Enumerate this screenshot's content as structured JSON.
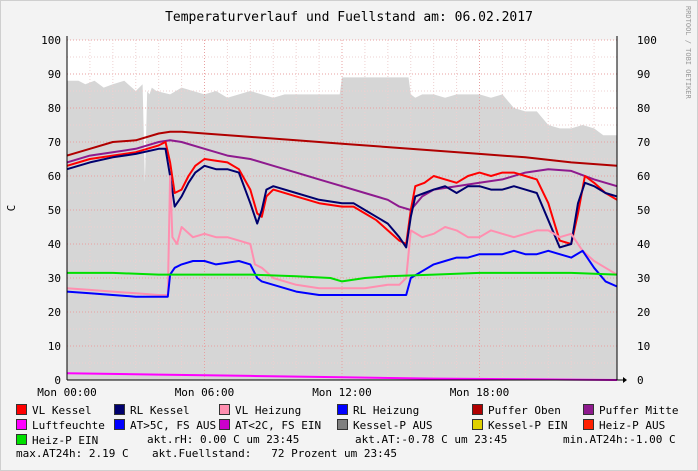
{
  "chart_data": {
    "type": "line",
    "title": "Temperaturverlauf und Fuellstand am: 06.02.2017",
    "ylabel": "C",
    "side_label": "RRDTOOL / TOBI OETIKER",
    "ylim": [
      0,
      100
    ],
    "xlim_hours": [
      0,
      24
    ],
    "y_ticks": [
      "0",
      "10",
      "20",
      "30",
      "40",
      "50",
      "60",
      "70",
      "80",
      "90",
      "100"
    ],
    "x_ticks": [
      {
        "h": 0,
        "label": "Mon 00:00"
      },
      {
        "h": 6,
        "label": "Mon 06:00"
      },
      {
        "h": 12,
        "label": "Mon 12:00"
      },
      {
        "h": 18,
        "label": "Mon 18:00"
      }
    ],
    "grid": true,
    "area": {
      "name": "Fuellstand",
      "color": "#d6d6d6",
      "x": [
        0,
        0.5,
        0.8,
        1.2,
        1.6,
        2.0,
        2.5,
        3.0,
        3.3,
        3.4,
        3.5,
        3.6,
        3.7,
        3.9,
        4.5,
        5.0,
        5.5,
        6.0,
        6.5,
        7.0,
        7.5,
        8.0,
        8.5,
        9.0,
        9.5,
        10.0,
        10.5,
        11.0,
        11.9,
        12.0,
        13.5,
        14.9,
        15.0,
        15.2,
        15.5,
        16.0,
        16.5,
        17.0,
        17.5,
        18.0,
        18.5,
        19.0,
        19.5,
        20.0,
        20.5,
        21.0,
        21.5,
        22.0,
        22.5,
        23.0,
        23.4,
        24.0
      ],
      "values": [
        88,
        88,
        87,
        88,
        86,
        87,
        88,
        85,
        87,
        58,
        85,
        84,
        86,
        85,
        84,
        86,
        85,
        84,
        85,
        83,
        84,
        85,
        84,
        83,
        84,
        84,
        84,
        84,
        84,
        89,
        89,
        89,
        84,
        83,
        84,
        84,
        83,
        84,
        84,
        84,
        83,
        84,
        80,
        79,
        79,
        75,
        74,
        74,
        75,
        74,
        72,
        72
      ]
    },
    "series": [
      {
        "name": "Puffer Oben",
        "color": "#b00000",
        "x": [
          0,
          1,
          2,
          3,
          4,
          4.5,
          5,
          6,
          8,
          10,
          12,
          14,
          16,
          18,
          20,
          22,
          24
        ],
        "values": [
          66,
          68,
          70,
          70.5,
          72.5,
          73,
          73,
          72.5,
          71.5,
          70.5,
          69.5,
          68.5,
          67.5,
          66.5,
          65.5,
          64,
          63
        ]
      },
      {
        "name": "Puffer Mitte",
        "color": "#8e1a8e",
        "x": [
          0,
          1,
          2,
          3,
          4,
          4.5,
          5,
          6,
          7,
          8,
          9,
          10,
          11,
          12,
          13,
          14,
          14.5,
          15,
          15.5,
          16,
          17,
          18,
          19,
          20,
          21,
          22,
          23,
          24
        ],
        "values": [
          64,
          66,
          67,
          68,
          70,
          70.5,
          70,
          68,
          66,
          65,
          63,
          61,
          59,
          57,
          55,
          53,
          51,
          50,
          54,
          56,
          57,
          58,
          59,
          61,
          62,
          61.5,
          59,
          57
        ]
      },
      {
        "name": "VL Kessel",
        "color": "#ff0000",
        "x": [
          0,
          1,
          2,
          3,
          4,
          4.3,
          4.5,
          4.7,
          5.0,
          5.3,
          5.6,
          6.0,
          6.5,
          7.0,
          7.5,
          8.0,
          8.3,
          8.5,
          8.7,
          9.0,
          10.0,
          11.0,
          12.0,
          12.5,
          13.0,
          13.5,
          14.0,
          14.5,
          14.8,
          15.0,
          15.2,
          15.6,
          16.0,
          16.5,
          17.0,
          17.5,
          18.0,
          18.5,
          19.0,
          19.5,
          20.0,
          20.5,
          21.0,
          21.5,
          22.0,
          22.3,
          22.6,
          23.0,
          23.5,
          24.0
        ],
        "values": [
          63,
          65,
          66,
          67,
          69,
          70,
          64,
          55,
          56,
          60,
          63,
          65,
          64.5,
          64,
          62,
          56,
          49,
          48,
          54,
          56,
          54,
          52,
          51,
          51,
          49,
          47,
          44,
          41,
          40,
          50,
          57,
          58,
          60,
          59,
          58,
          60,
          61,
          60,
          61,
          61,
          60,
          59,
          52,
          41,
          40,
          49,
          60,
          58,
          55,
          53
        ]
      },
      {
        "name": "RL Kessel",
        "color": "#00006e",
        "x": [
          0,
          1,
          2,
          3,
          4,
          4.3,
          4.5,
          4.7,
          5.0,
          5.3,
          5.6,
          6.0,
          6.5,
          7.0,
          7.5,
          8.0,
          8.3,
          8.5,
          8.7,
          9.0,
          10.0,
          11.0,
          12.0,
          12.5,
          13.0,
          13.5,
          14.0,
          14.5,
          14.8,
          15.0,
          15.2,
          15.6,
          16.0,
          16.5,
          17.0,
          17.5,
          18.0,
          18.5,
          19.0,
          19.5,
          20.0,
          20.5,
          21.0,
          21.5,
          22.0,
          22.3,
          22.6,
          23.0,
          23.5,
          24.0
        ],
        "values": [
          62,
          64,
          65.5,
          66.5,
          68,
          68,
          60,
          51,
          54,
          58,
          61,
          63,
          62,
          62,
          61,
          52,
          46,
          50,
          56,
          57,
          55,
          53,
          52,
          52,
          50,
          48,
          46,
          42,
          39,
          48,
          54,
          55,
          56,
          57,
          55,
          57,
          57,
          56,
          56,
          57,
          56,
          55,
          47,
          39,
          40,
          52,
          58,
          57,
          55,
          54
        ]
      },
      {
        "name": "VL Heizung",
        "color": "#ff8fb0",
        "x": [
          0,
          1,
          2,
          3,
          4,
          4.4,
          4.5,
          4.6,
          4.8,
          5.0,
          5.5,
          6.0,
          6.5,
          7.0,
          7.5,
          8.0,
          8.2,
          8.5,
          9.0,
          10.0,
          11.0,
          12.0,
          13.0,
          14.0,
          14.5,
          14.8,
          15.0,
          15.5,
          16.0,
          16.5,
          17.0,
          17.5,
          18.0,
          18.5,
          19.0,
          19.5,
          20.0,
          20.5,
          21.0,
          21.5,
          22.0,
          22.5,
          23.0,
          23.5,
          24.0
        ],
        "values": [
          27,
          26.5,
          26,
          25.5,
          25,
          25,
          60,
          42,
          40,
          45,
          42,
          43,
          42,
          42,
          41,
          40,
          34,
          33,
          30,
          28,
          27,
          27,
          27,
          28,
          28,
          30,
          44,
          42,
          43,
          45,
          44,
          42,
          42,
          44,
          43,
          42,
          43,
          44,
          44,
          42,
          43,
          38,
          35,
          33,
          31
        ]
      },
      {
        "name": "RL Heizung",
        "color": "#0000ff",
        "x": [
          0,
          1,
          2,
          3,
          4,
          4.4,
          4.5,
          4.7,
          5.0,
          5.5,
          6.0,
          6.5,
          7.0,
          7.5,
          8.0,
          8.3,
          8.5,
          9.0,
          10.0,
          11.0,
          12.0,
          13.0,
          14.0,
          14.5,
          14.8,
          15.0,
          15.5,
          16.0,
          16.5,
          17.0,
          17.5,
          18.0,
          18.5,
          19.0,
          19.5,
          20.0,
          20.5,
          21.0,
          21.5,
          22.0,
          22.5,
          23.0,
          23.5,
          24.0
        ],
        "values": [
          26,
          25.5,
          25,
          24.5,
          24.5,
          24.5,
          31,
          33,
          34,
          35,
          35,
          34,
          34.5,
          35,
          34,
          30,
          29,
          28,
          26,
          25,
          25,
          25,
          25,
          25,
          25,
          30,
          32,
          34,
          35,
          36,
          36,
          37,
          37,
          37,
          38,
          37,
          37,
          38,
          37,
          36,
          38,
          33,
          29,
          27.5
        ]
      },
      {
        "name": "Heiz-P EIN",
        "color": "#00e000",
        "x": [
          0,
          2,
          4,
          6,
          8,
          10,
          11.5,
          12,
          13,
          14,
          16,
          18,
          20,
          22,
          24
        ],
        "values": [
          31.5,
          31.5,
          31,
          31,
          31,
          30.5,
          30,
          29,
          30,
          30.5,
          31,
          31.5,
          31.5,
          31.5,
          31
        ]
      },
      {
        "name": "Luftfeuchte",
        "color": "#ff00ff",
        "x": [
          0,
          4,
          8,
          12,
          16,
          20,
          24
        ],
        "values": [
          2,
          1.6,
          1.2,
          0.8,
          0.4,
          0.2,
          0
        ]
      }
    ],
    "legend": [
      {
        "label": "VL Kessel",
        "color": "#ff0000"
      },
      {
        "label": "RL Kessel",
        "color": "#00006e"
      },
      {
        "label": "VL Heizung",
        "color": "#ff8fb0"
      },
      {
        "label": "RL Heizung",
        "color": "#0000ff"
      },
      {
        "label": "Puffer Oben",
        "color": "#b00000"
      },
      {
        "label": "Puffer Mitte",
        "color": "#8e1a8e"
      },
      {
        "label": "Luftfeuchte",
        "color": "#ff00ff"
      },
      {
        "label": "AT>5C, FS AUS",
        "color": "#0000ff"
      },
      {
        "label": "AT<2C, FS EIN",
        "color": "#cc00cc"
      },
      {
        "label": "Kessel-P AUS",
        "color": "#808080"
      },
      {
        "label": "Kessel-P EIN",
        "color": "#e0d000"
      },
      {
        "label": "Heiz-P AUS",
        "color": "#ff2000"
      },
      {
        "label": "Heiz-P EIN",
        "color": "#00e000"
      }
    ],
    "info": {
      "rh": "akt.rH: 0.00 C um 23:45",
      "at": "akt.AT:-0.78 C um 23:45",
      "min_at": "min.AT24h:-1.00 C",
      "max_at": "max.AT24h: 2.19 C",
      "fuell": "akt.Fuellstand:   72 Prozent um 23:45"
    }
  }
}
